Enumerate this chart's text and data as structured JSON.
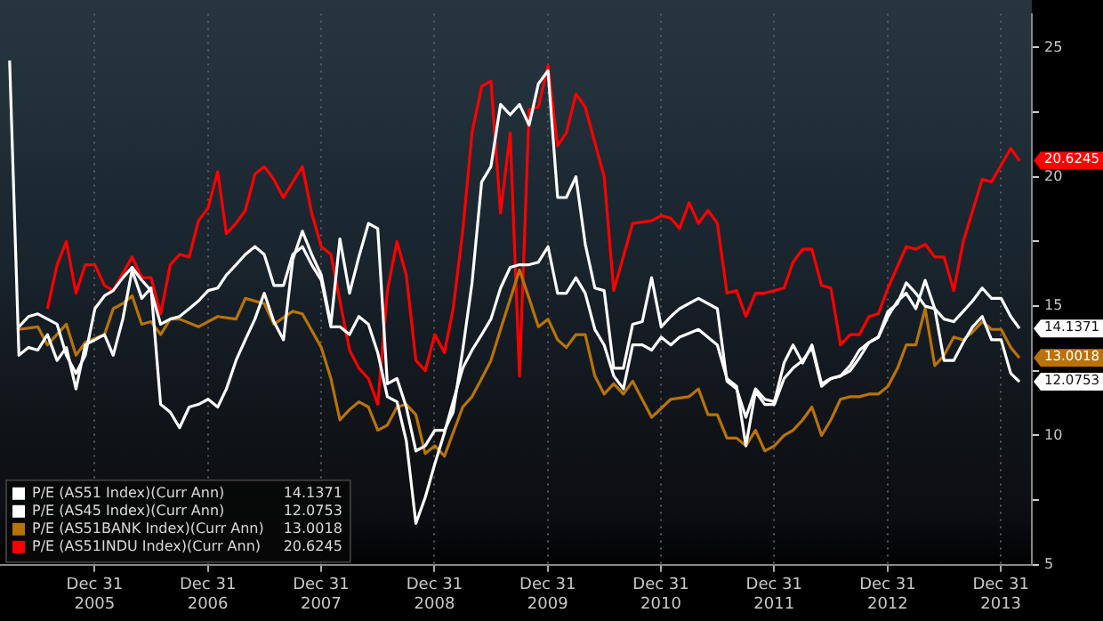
{
  "chart_data": {
    "type": "line",
    "xlim": [
      "2005-03-01",
      "2014-04-10"
    ],
    "xticks": [
      {
        "value": "2005-12-31",
        "label": "Dec 31 2005"
      },
      {
        "value": "2006-12-31",
        "label": "Dec 31 2006"
      },
      {
        "value": "2007-12-31",
        "label": "Dec 31 2007"
      },
      {
        "value": "2008-12-31",
        "label": "Dec 31 2008"
      },
      {
        "value": "2009-12-31",
        "label": "Dec 31 2009"
      },
      {
        "value": "2010-12-31",
        "label": "Dec 31 2010"
      },
      {
        "value": "2011-12-31",
        "label": "Dec 31 2011"
      },
      {
        "value": "2012-12-31",
        "label": "Dec 31 2012"
      },
      {
        "value": "2013-12-31",
        "label": "Dec 31 2013"
      }
    ],
    "ylim": [
      5,
      26.3
    ],
    "yticks": [
      5,
      {
        "value": 7.5,
        "label": null
      },
      10,
      {
        "value": 12.5,
        "label": null
      },
      15,
      {
        "value": 17.5,
        "label": null
      },
      20,
      {
        "value": 22.5,
        "label": null
      },
      25
    ],
    "grid": "x",
    "legend": "bottom left",
    "series": [
      {
        "name": "P/E (AS51 Index)(Curr Ann)",
        "color": "#ffffff",
        "x": [
          "2005-05",
          "2005-06",
          "2005-07",
          "2005-09",
          "2005-10",
          "2005-11",
          "2005-12",
          "2006-01",
          "2006-02",
          "2006-03",
          "2006-04",
          "2006-05",
          "2006-06",
          "2006-07",
          "2006-08",
          "2006-09",
          "2006-10",
          "2006-11",
          "2006-12",
          "2007-01",
          "2007-02",
          "2007-03",
          "2007-04",
          "2007-05",
          "2007-06",
          "2007-07",
          "2007-08",
          "2007-09",
          "2007-10",
          "2007-11",
          "2007-12",
          "2008-01",
          "2008-02",
          "2008-03",
          "2008-04",
          "2008-05",
          "2008-06",
          "2008-07",
          "2008-08",
          "2008-09",
          "2008-10",
          "2008-11",
          "2008-12",
          "2009-01",
          "2009-02",
          "2009-03",
          "2009-04",
          "2009-05",
          "2009-06",
          "2009-07",
          "2009-08",
          "2009-09",
          "2009-10",
          "2009-11",
          "2009-12",
          "2010-01",
          "2010-02",
          "2010-03",
          "2010-04",
          "2010-05",
          "2010-06",
          "2010-07",
          "2010-08",
          "2010-09",
          "2010-10",
          "2010-11",
          "2010-12",
          "2011-01",
          "2011-02",
          "2011-03",
          "2011-05",
          "2011-07",
          "2011-08",
          "2011-09",
          "2011-10",
          "2011-11",
          "2011-12",
          "2012-01",
          "2012-02",
          "2012-03",
          "2012-04",
          "2012-05",
          "2012-06",
          "2012-07",
          "2012-08",
          "2012-09",
          "2012-10",
          "2012-11",
          "2012-12",
          "2013-01",
          "2013-02",
          "2013-03",
          "2013-04",
          "2013-05",
          "2013-06",
          "2013-07",
          "2013-08",
          "2013-09",
          "2013-10",
          "2013-11",
          "2013-12",
          "2014-01",
          "2014-02",
          "2014-03"
        ],
        "values": [
          14.2,
          14.6,
          14.7,
          14.3,
          13.1,
          12.4,
          13.1,
          14.9,
          15.4,
          15.6,
          16.1,
          16.5,
          16.0,
          15.6,
          14.3,
          14.5,
          14.6,
          14.9,
          15.2,
          15.6,
          15.7,
          16.2,
          16.6,
          17.0,
          17.3,
          17.0,
          15.8,
          15.8,
          17.0,
          17.3,
          16.6,
          16.0,
          14.2,
          14.2,
          13.9,
          14.6,
          14.3,
          13.2,
          11.5,
          11.3,
          9.8,
          6.6,
          7.6,
          8.9,
          10.1,
          11.3,
          12.6,
          13.3,
          13.9,
          14.5,
          15.7,
          16.5,
          16.6,
          16.6,
          16.7,
          17.3,
          15.5,
          15.5,
          16.1,
          15.5,
          14.1,
          13.5,
          12.3,
          11.8,
          13.5,
          13.5,
          13.3,
          13.8,
          13.5,
          13.8,
          14.1,
          13.5,
          12.2,
          11.9,
          9.6,
          11.7,
          11.2,
          11.2,
          12.2,
          12.6,
          12.9,
          13.4,
          11.9,
          12.2,
          12.3,
          12.5,
          13.0,
          13.6,
          13.8,
          14.8,
          15.1,
          15.9,
          15.5,
          15.0,
          14.9,
          14.5,
          14.4,
          14.8,
          15.2,
          15.7,
          15.3,
          15.3,
          14.6,
          14.1371
        ],
        "value_labels": [
          null,
          null,
          null,
          null,
          null,
          null,
          null,
          null,
          null,
          null,
          null,
          null,
          null,
          null,
          null,
          null,
          null,
          null,
          null,
          null,
          null,
          null,
          null,
          null,
          null,
          null,
          null,
          null,
          null,
          null,
          null,
          null,
          null,
          null,
          null,
          null,
          null,
          null,
          null,
          null,
          null,
          null,
          null,
          null,
          null,
          null,
          null,
          null,
          null,
          null,
          null,
          null,
          null,
          null,
          null,
          null,
          null,
          null,
          null,
          null,
          null,
          null,
          null,
          null,
          null,
          null,
          null,
          null,
          null,
          null,
          null,
          null,
          null,
          null,
          null,
          null,
          null,
          null,
          null,
          null,
          null,
          null,
          null,
          null,
          null,
          null,
          null,
          null,
          null,
          null,
          null,
          null,
          null,
          null,
          null,
          null,
          null,
          null,
          null,
          null,
          null,
          null,
          null,
          "14.1371"
        ]
      },
      {
        "name": "P/E (AS45 Index)(Curr Ann)",
        "color": "#ffffff",
        "x": [
          "2005-04",
          "2005-05",
          "2005-06",
          "2005-07",
          "2005-08",
          "2005-09",
          "2005-10",
          "2005-11",
          "2005-12",
          "2006-01",
          "2006-02",
          "2006-03",
          "2006-04",
          "2006-05",
          "2006-06",
          "2006-07",
          "2006-08",
          "2006-09",
          "2006-10",
          "2006-11",
          "2006-12",
          "2007-01",
          "2007-02",
          "2007-03",
          "2007-04",
          "2007-05",
          "2007-06",
          "2007-07",
          "2007-08",
          "2007-09",
          "2007-10",
          "2007-11",
          "2007-12",
          "2008-01",
          "2008-02",
          "2008-03",
          "2008-04",
          "2008-05",
          "2008-06",
          "2008-07",
          "2008-08",
          "2008-09",
          "2008-10",
          "2008-11",
          "2008-12",
          "2009-01",
          "2009-02",
          "2009-03",
          "2009-04",
          "2009-05",
          "2009-06",
          "2009-07",
          "2009-08",
          "2009-09",
          "2009-10",
          "2009-11",
          "2009-12",
          "2010-01",
          "2010-02",
          "2010-03",
          "2010-04",
          "2010-05",
          "2010-06",
          "2010-07",
          "2010-08",
          "2010-09",
          "2010-10",
          "2010-11",
          "2010-12",
          "2011-01",
          "2011-02",
          "2011-03",
          "2011-05",
          "2011-07",
          "2011-08",
          "2011-09",
          "2011-10",
          "2011-11",
          "2011-12",
          "2012-01",
          "2012-02",
          "2012-03",
          "2012-04",
          "2012-05",
          "2012-06",
          "2012-07",
          "2012-08",
          "2012-09",
          "2012-10",
          "2012-11",
          "2012-12",
          "2013-01",
          "2013-02",
          "2013-03",
          "2013-04",
          "2013-05",
          "2013-06",
          "2013-07",
          "2013-08",
          "2013-09",
          "2013-10",
          "2013-11",
          "2013-12",
          "2014-01",
          "2014-02",
          "2014-03"
        ],
        "values": [
          24.5,
          13.1,
          13.4,
          13.3,
          13.9,
          12.9,
          13.4,
          11.8,
          13.5,
          13.7,
          13.9,
          13.1,
          14.5,
          16.4,
          15.3,
          15.7,
          11.2,
          10.9,
          10.3,
          11.1,
          11.2,
          11.4,
          11.1,
          11.8,
          12.9,
          13.7,
          14.5,
          15.5,
          14.4,
          13.7,
          16.8,
          17.9,
          17.0,
          16.2,
          14.3,
          17.6,
          15.5,
          16.9,
          18.2,
          18.0,
          12.0,
          12.2,
          11.1,
          9.4,
          9.6,
          10.2,
          10.2,
          10.9,
          13.3,
          15.9,
          19.8,
          20.4,
          22.8,
          22.4,
          22.8,
          22.0,
          23.6,
          24.1,
          19.2,
          19.2,
          20.0,
          17.4,
          15.7,
          15.6,
          12.6,
          12.6,
          14.3,
          14.4,
          16.1,
          14.2,
          14.6,
          14.9,
          15.3,
          14.9,
          12.1,
          11.8,
          10.7,
          11.8,
          11.4,
          11.3,
          12.8,
          13.5,
          12.8,
          13.5,
          12.0,
          12.2,
          12.3,
          12.7,
          13.3,
          13.6,
          13.8,
          14.6,
          15.2,
          15.5,
          14.9,
          16.0,
          14.9,
          12.9,
          12.9,
          13.6,
          14.2,
          14.6,
          13.7,
          13.7,
          12.4,
          12.0753
        ],
        "value_labels": [
          null,
          null,
          null,
          null,
          null,
          null,
          null,
          null,
          null,
          null,
          null,
          null,
          null,
          null,
          null,
          null,
          null,
          null,
          null,
          null,
          null,
          null,
          null,
          null,
          null,
          null,
          null,
          null,
          null,
          null,
          null,
          null,
          null,
          null,
          null,
          null,
          null,
          null,
          null,
          null,
          null,
          null,
          null,
          null,
          null,
          null,
          null,
          null,
          null,
          null,
          null,
          null,
          null,
          null,
          null,
          null,
          null,
          null,
          null,
          null,
          null,
          null,
          null,
          null,
          null,
          null,
          null,
          null,
          null,
          null,
          null,
          null,
          null,
          null,
          null,
          null,
          null,
          null,
          null,
          null,
          null,
          null,
          null,
          null,
          null,
          null,
          null,
          null,
          null,
          null,
          null,
          null,
          null,
          null,
          null,
          null,
          null,
          null,
          null,
          null,
          null,
          null,
          null,
          null,
          null,
          "12.0753"
        ]
      },
      {
        "name": "P/E (AS51BANK Index)(Curr Ann)",
        "color": "#b8730a",
        "x": [
          "2005-05",
          "2005-07",
          "2005-08",
          "2005-10",
          "2005-11",
          "2005-12",
          "2006-02",
          "2006-03",
          "2006-04",
          "2006-05",
          "2006-06",
          "2006-07",
          "2006-08",
          "2006-09",
          "2006-10",
          "2006-12",
          "2007-02",
          "2007-04",
          "2007-05",
          "2007-07",
          "2007-08",
          "2007-10",
          "2007-11",
          "2008-01",
          "2008-02",
          "2008-03",
          "2008-04",
          "2008-05",
          "2008-06",
          "2008-07",
          "2008-08",
          "2008-09",
          "2008-10",
          "2008-11",
          "2008-12",
          "2009-01",
          "2009-02",
          "2009-04",
          "2009-05",
          "2009-06",
          "2009-07",
          "2009-08",
          "2009-10",
          "2009-11",
          "2009-12",
          "2010-01",
          "2010-02",
          "2010-03",
          "2010-04",
          "2010-05",
          "2010-06",
          "2010-07",
          "2010-08",
          "2010-09",
          "2010-10",
          "2010-12",
          "2011-02",
          "2011-04",
          "2011-05",
          "2011-06",
          "2011-07",
          "2011-08",
          "2011-09",
          "2011-10",
          "2011-11",
          "2011-12",
          "2012-01",
          "2012-02",
          "2012-03",
          "2012-04",
          "2012-05",
          "2012-06",
          "2012-07",
          "2012-08",
          "2012-09",
          "2012-10",
          "2012-11",
          "2012-12",
          "2013-01",
          "2013-02",
          "2013-03",
          "2013-04",
          "2013-05",
          "2013-06",
          "2013-07",
          "2013-08",
          "2013-09",
          "2013-10",
          "2013-11",
          "2013-12",
          "2014-01",
          "2014-02",
          "2014-03"
        ],
        "values": [
          14.1,
          14.2,
          13.5,
          14.3,
          13.1,
          13.6,
          13.9,
          14.9,
          15.1,
          15.4,
          14.3,
          14.4,
          13.9,
          14.5,
          14.5,
          14.2,
          14.6,
          14.5,
          15.3,
          15.1,
          14.3,
          14.8,
          14.7,
          13.4,
          12.2,
          10.6,
          11.0,
          11.3,
          11.1,
          10.2,
          10.4,
          11.1,
          11.2,
          10.8,
          9.3,
          9.6,
          9.2,
          11.1,
          11.5,
          12.2,
          12.9,
          14.1,
          16.4,
          15.3,
          14.2,
          14.5,
          13.7,
          13.4,
          13.9,
          13.9,
          12.3,
          11.6,
          12.0,
          11.6,
          12.1,
          10.7,
          11.4,
          11.5,
          11.8,
          10.8,
          10.8,
          9.9,
          9.9,
          9.6,
          10.2,
          9.4,
          9.6,
          10.0,
          10.2,
          10.6,
          11.1,
          10.0,
          10.6,
          11.4,
          11.5,
          11.5,
          11.6,
          11.6,
          11.9,
          12.6,
          13.5,
          13.5,
          14.9,
          12.7,
          13.1,
          13.8,
          13.7,
          14.0,
          14.4,
          14.1,
          14.1,
          13.4,
          13.0018
        ],
        "value_labels": [
          null,
          null,
          null,
          null,
          null,
          null,
          null,
          null,
          null,
          null,
          null,
          null,
          null,
          null,
          null,
          null,
          null,
          null,
          null,
          null,
          null,
          null,
          null,
          null,
          null,
          null,
          null,
          null,
          null,
          null,
          null,
          null,
          null,
          null,
          null,
          null,
          null,
          null,
          null,
          null,
          null,
          null,
          null,
          null,
          null,
          null,
          null,
          null,
          null,
          null,
          null,
          null,
          null,
          null,
          null,
          null,
          null,
          null,
          null,
          null,
          null,
          null,
          null,
          null,
          null,
          null,
          null,
          null,
          null,
          null,
          null,
          null,
          null,
          null,
          null,
          null,
          null,
          null,
          null,
          null,
          null,
          null,
          null,
          null,
          null,
          null,
          null,
          null,
          null,
          null,
          null,
          null,
          "13.0018"
        ]
      },
      {
        "name": "P/E (AS51INDU Index)(Curr Ann)",
        "color": "#ff0000",
        "x": [
          "2005-08",
          "2005-09",
          "2005-10",
          "2005-11",
          "2005-12",
          "2006-01",
          "2006-02",
          "2006-03",
          "2006-05",
          "2006-06",
          "2006-07",
          "2006-08",
          "2006-09",
          "2006-10",
          "2006-11",
          "2006-12",
          "2007-01",
          "2007-02",
          "2007-03",
          "2007-04",
          "2007-05",
          "2007-06",
          "2007-07",
          "2007-08",
          "2007-09",
          "2007-10",
          "2007-11",
          "2007-12",
          "2008-01",
          "2008-02",
          "2008-03",
          "2008-04",
          "2008-05",
          "2008-06",
          "2008-07",
          "2008-08",
          "2008-09",
          "2008-10",
          "2008-11",
          "2008-12",
          "2009-01",
          "2009-02",
          "2009-03",
          "2009-04",
          "2009-05",
          "2009-06",
          "2009-07",
          "2009-08",
          "2009-09",
          "2009-10",
          "2009-11",
          "2009-12",
          "2010-01",
          "2010-02",
          "2010-03",
          "2010-04",
          "2010-05",
          "2010-07",
          "2010-08",
          "2010-10",
          "2010-12",
          "2011-01",
          "2011-02",
          "2011-03",
          "2011-04",
          "2011-05",
          "2011-06",
          "2011-07",
          "2011-08",
          "2011-09",
          "2011-10",
          "2011-11",
          "2011-12",
          "2012-02",
          "2012-03",
          "2012-04",
          "2012-05",
          "2012-06",
          "2012-07",
          "2012-08",
          "2012-09",
          "2012-10",
          "2012-11",
          "2012-12",
          "2013-01",
          "2013-03",
          "2013-04",
          "2013-05",
          "2013-06",
          "2013-07",
          "2013-08",
          "2013-09",
          "2013-11",
          "2013-12",
          "2014-02",
          "2014-03"
        ],
        "values": [
          14.9,
          16.6,
          17.5,
          15.5,
          16.6,
          16.6,
          15.8,
          15.6,
          16.9,
          16.1,
          16.1,
          14.7,
          16.6,
          17.0,
          16.9,
          18.3,
          18.8,
          20.2,
          17.8,
          18.2,
          18.7,
          20.1,
          20.4,
          19.9,
          19.2,
          19.8,
          20.4,
          18.6,
          17.3,
          17.0,
          15.2,
          13.3,
          12.6,
          12.2,
          11.2,
          15.6,
          17.5,
          16.2,
          12.9,
          12.5,
          13.9,
          13.2,
          14.9,
          17.9,
          21.7,
          23.5,
          23.7,
          18.6,
          21.7,
          12.3,
          22.6,
          22.7,
          24.3,
          21.2,
          21.7,
          23.2,
          22.7,
          20.0,
          15.6,
          18.2,
          18.3,
          18.5,
          18.4,
          18.0,
          19.0,
          18.2,
          18.7,
          18.2,
          15.5,
          15.6,
          14.6,
          15.5,
          15.5,
          15.7,
          16.7,
          17.2,
          17.2,
          15.8,
          15.7,
          13.5,
          13.9,
          13.9,
          14.6,
          14.7,
          15.7,
          17.3,
          17.2,
          17.4,
          16.9,
          16.9,
          15.6,
          17.5,
          19.9,
          19.8,
          21.1,
          20.6245
        ],
        "value_labels": [
          null,
          null,
          null,
          null,
          null,
          null,
          null,
          null,
          null,
          null,
          null,
          null,
          null,
          null,
          null,
          null,
          null,
          null,
          null,
          null,
          null,
          null,
          null,
          null,
          null,
          null,
          null,
          null,
          null,
          null,
          null,
          null,
          null,
          null,
          null,
          null,
          null,
          null,
          null,
          null,
          null,
          null,
          null,
          null,
          null,
          null,
          null,
          null,
          null,
          null,
          null,
          null,
          null,
          null,
          null,
          null,
          null,
          null,
          null,
          null,
          null,
          null,
          null,
          null,
          null,
          null,
          null,
          null,
          null,
          null,
          null,
          null,
          null,
          null,
          null,
          null,
          null,
          null,
          null,
          null,
          null,
          null,
          null,
          null,
          null,
          null,
          null,
          null,
          null,
          null,
          null,
          null,
          null,
          null,
          null,
          "20.6245"
        ]
      }
    ]
  }
}
